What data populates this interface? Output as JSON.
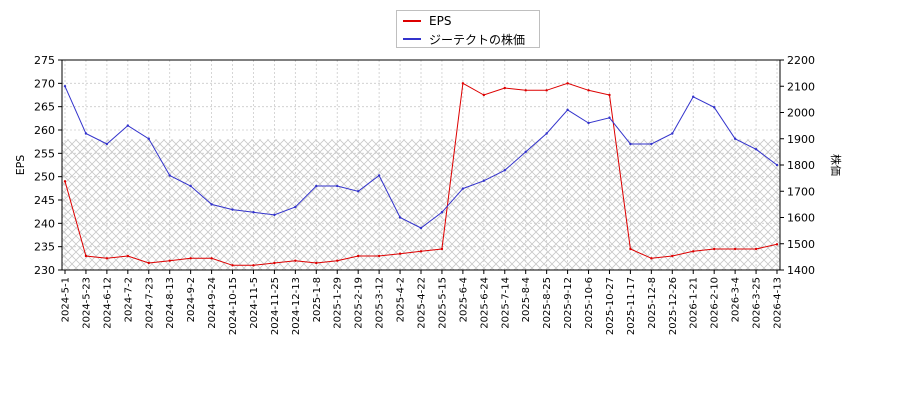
{
  "chart_data": {
    "type": "line",
    "ylabel_left": "EPS",
    "ylabel_right": "株価",
    "ylim_left": [
      230,
      275
    ],
    "ylim_right": [
      1400,
      2200
    ],
    "left_ticks": [
      230,
      235,
      240,
      245,
      250,
      255,
      260,
      265,
      270,
      275
    ],
    "right_ticks": [
      1400,
      1500,
      1600,
      1700,
      1800,
      1900,
      2000,
      2100,
      2200
    ],
    "x_tick_labels": [
      "2024-5-1",
      "2024-5-23",
      "2024-6-12",
      "2024-7-2",
      "2024-7-23",
      "2024-8-13",
      "2024-9-2",
      "2024-9-24",
      "2024-10-15",
      "2024-11-5",
      "2024-11-25",
      "2024-12-13",
      "2025-1-8",
      "2025-1-29",
      "2025-2-19",
      "2025-3-12",
      "2025-4-2",
      "2025-4-22",
      "2025-5-15",
      "2025-6-4",
      "2025-6-24",
      "2025-7-14",
      "2025-8-4",
      "2025-8-25",
      "2025-9-12",
      "2025-10-6",
      "2025-10-27",
      "2025-11-17",
      "2025-12-8",
      "2025-12-26",
      "2026-1-21",
      "2026-2-10",
      "2026-3-4",
      "2026-3-25",
      "2026-4-13"
    ],
    "hatched_band_left": [
      230,
      258
    ],
    "grid": true,
    "legend_position": "top-center",
    "series": [
      {
        "name": "EPS",
        "axis": "left",
        "color": "#dd0000",
        "x": [
          "2024-5-1",
          "2024-5-23",
          "2024-6-12",
          "2024-7-2",
          "2024-7-23",
          "2024-8-13",
          "2024-9-2",
          "2024-9-24",
          "2024-10-15",
          "2024-11-5",
          "2024-11-25",
          "2024-12-13",
          "2025-1-8",
          "2025-1-29",
          "2025-2-19",
          "2025-3-12",
          "2025-4-2",
          "2025-4-22",
          "2025-5-15",
          "2025-6-4",
          "2025-6-24",
          "2025-7-14",
          "2025-8-4",
          "2025-8-25",
          "2025-9-12",
          "2025-10-6",
          "2025-10-27",
          "2025-11-17",
          "2025-12-8",
          "2025-12-26",
          "2026-1-21",
          "2026-2-10",
          "2026-3-4",
          "2026-3-25",
          "2026-4-13"
        ],
        "values": [
          249,
          233,
          232.5,
          233,
          231.5,
          232,
          232.5,
          232.5,
          231,
          231,
          231.5,
          232,
          231.5,
          232,
          233,
          233,
          233.5,
          234,
          234.5,
          270,
          267.5,
          269,
          268.5,
          268.5,
          270,
          268.5,
          267.5,
          234.5,
          232.5,
          233,
          234,
          234.5,
          234.5,
          234.5,
          235.5
        ]
      },
      {
        "name": "ジーテクトの株価",
        "axis": "right",
        "color": "#3333cc",
        "x": [
          "2024-5-1",
          "2024-5-23",
          "2024-6-12",
          "2024-7-2",
          "2024-7-23",
          "2024-8-13",
          "2024-9-2",
          "2024-9-24",
          "2024-10-15",
          "2024-11-5",
          "2024-11-25",
          "2024-12-13",
          "2025-1-8",
          "2025-1-29",
          "2025-2-19",
          "2025-3-12",
          "2025-4-2",
          "2025-4-22",
          "2025-5-15",
          "2025-6-4",
          "2025-6-24",
          "2025-7-14",
          "2025-8-4",
          "2025-8-25",
          "2025-9-12",
          "2025-10-6",
          "2025-10-27",
          "2025-11-17",
          "2025-12-8",
          "2025-12-26",
          "2026-1-21",
          "2026-2-10",
          "2026-3-4",
          "2026-3-25",
          "2026-4-13"
        ],
        "values": [
          2100,
          1920,
          1880,
          1950,
          1900,
          1760,
          1720,
          1650,
          1630,
          1620,
          1610,
          1640,
          1720,
          1720,
          1700,
          1760,
          1600,
          1560,
          1620,
          1710,
          1740,
          1780,
          1850,
          1920,
          2010,
          1960,
          1980,
          1880,
          1880,
          1920,
          2060,
          2020,
          1900,
          1860,
          1800
        ]
      }
    ]
  }
}
